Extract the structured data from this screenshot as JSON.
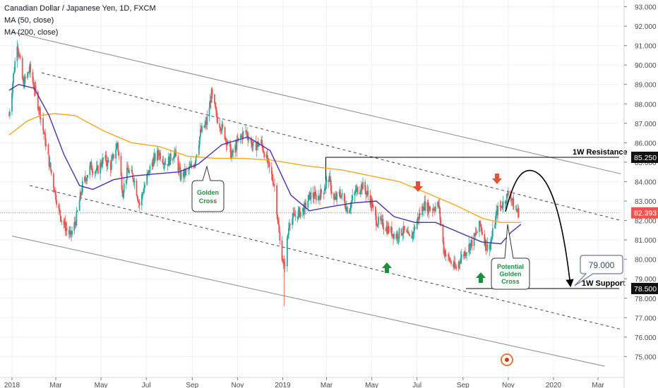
{
  "header": {
    "title": "Canadian Dollar / Japanese Yen, 1D, FXCM",
    "ma50": "MA (50, close)",
    "ma200": "MA (200, close)"
  },
  "chart_data": {
    "type": "candlestick",
    "ylim": [
      74.5,
      93.2
    ],
    "y_ticks": [
      75,
      76,
      77,
      78,
      79,
      80,
      81,
      82,
      83,
      84,
      85,
      86,
      87,
      88,
      89,
      90,
      91,
      92,
      93
    ],
    "x_range": [
      "2018-01-01",
      "2020-04-15"
    ],
    "x_ticks": [
      {
        "date": "2018-01-01",
        "label": "2018"
      },
      {
        "date": "2018-03-01",
        "label": "Mar"
      },
      {
        "date": "2018-05-01",
        "label": "May"
      },
      {
        "date": "2018-07-01",
        "label": "Jul"
      },
      {
        "date": "2018-09-01",
        "label": "Sep"
      },
      {
        "date": "2018-11-01",
        "label": "Nov"
      },
      {
        "date": "2019-01-01",
        "label": "2019"
      },
      {
        "date": "2019-03-01",
        "label": "Mar"
      },
      {
        "date": "2019-05-01",
        "label": "May"
      },
      {
        "date": "2019-07-01",
        "label": "Jul"
      },
      {
        "date": "2019-09-01",
        "label": "Sep"
      },
      {
        "date": "2019-11-01",
        "label": "Nov"
      },
      {
        "date": "2020-01-01",
        "label": "2020"
      },
      {
        "date": "2020-03-01",
        "label": "Mar"
      }
    ],
    "close_path": [
      [
        "2017-12-28",
        87.4
      ],
      [
        "2018-01-08",
        91.2
      ],
      [
        "2018-01-16",
        89.0
      ],
      [
        "2018-01-25",
        89.8
      ],
      [
        "2018-02-08",
        87.5
      ],
      [
        "2018-02-20",
        85.0
      ],
      [
        "2018-03-05",
        82.5
      ],
      [
        "2018-03-12",
        81.8
      ],
      [
        "2018-03-21",
        81.2
      ],
      [
        "2018-03-28",
        82.0
      ],
      [
        "2018-04-06",
        83.8
      ],
      [
        "2018-04-17",
        84.8
      ],
      [
        "2018-04-25",
        84.5
      ],
      [
        "2018-05-05",
        85.2
      ],
      [
        "2018-05-14",
        84.8
      ],
      [
        "2018-05-23",
        86.0
      ],
      [
        "2018-05-30",
        83.5
      ],
      [
        "2018-06-06",
        84.6
      ],
      [
        "2018-06-14",
        84.2
      ],
      [
        "2018-06-22",
        82.8
      ],
      [
        "2018-06-30",
        84.0
      ],
      [
        "2018-07-09",
        85.0
      ],
      [
        "2018-07-18",
        85.5
      ],
      [
        "2018-07-28",
        84.9
      ],
      [
        "2018-08-08",
        85.5
      ],
      [
        "2018-08-16",
        84.3
      ],
      [
        "2018-08-25",
        84.5
      ],
      [
        "2018-09-04",
        85.0
      ],
      [
        "2018-09-12",
        86.5
      ],
      [
        "2018-09-20",
        87.0
      ],
      [
        "2018-09-27",
        88.5
      ],
      [
        "2018-10-04",
        87.3
      ],
      [
        "2018-10-14",
        86.5
      ],
      [
        "2018-10-24",
        85.3
      ],
      [
        "2018-11-03",
        86.2
      ],
      [
        "2018-11-12",
        86.6
      ],
      [
        "2018-11-22",
        85.8
      ],
      [
        "2018-12-03",
        86.0
      ],
      [
        "2018-12-12",
        84.9
      ],
      [
        "2018-12-21",
        83.8
      ],
      [
        "2018-12-28",
        80.9
      ],
      [
        "2019-01-03",
        79.5
      ],
      [
        "2019-01-10",
        82.0
      ],
      [
        "2019-01-20",
        82.3
      ],
      [
        "2019-01-30",
        82.6
      ],
      [
        "2019-02-07",
        83.3
      ],
      [
        "2019-02-17",
        83.2
      ],
      [
        "2019-02-24",
        83.5
      ],
      [
        "2019-03-04",
        84.2
      ],
      [
        "2019-03-11",
        83.0
      ],
      [
        "2019-03-20",
        83.4
      ],
      [
        "2019-03-30",
        82.5
      ],
      [
        "2019-04-09",
        83.5
      ],
      [
        "2019-04-18",
        83.8
      ],
      [
        "2019-04-28",
        83.2
      ],
      [
        "2019-05-07",
        82.0
      ],
      [
        "2019-05-16",
        81.8
      ],
      [
        "2019-05-25",
        81.5
      ],
      [
        "2019-06-03",
        81.2
      ],
      [
        "2019-06-12",
        81.5
      ],
      [
        "2019-06-22",
        81.0
      ],
      [
        "2019-07-01",
        82.0
      ],
      [
        "2019-07-10",
        82.8
      ],
      [
        "2019-07-20",
        82.6
      ],
      [
        "2019-07-30",
        82.8
      ],
      [
        "2019-08-06",
        80.5
      ],
      [
        "2019-08-13",
        80.0
      ],
      [
        "2019-08-22",
        79.5
      ],
      [
        "2019-08-29",
        80.1
      ],
      [
        "2019-09-06",
        80.5
      ],
      [
        "2019-09-15",
        81.0
      ],
      [
        "2019-09-24",
        81.8
      ],
      [
        "2019-10-03",
        80.6
      ],
      [
        "2019-10-08",
        80.8
      ],
      [
        "2019-10-17",
        82.5
      ],
      [
        "2019-10-27",
        83.0
      ],
      [
        "2019-11-03",
        83.5
      ],
      [
        "2019-11-09",
        82.6
      ],
      [
        "2019-11-16",
        82.4
      ]
    ],
    "ma50_path": [
      [
        "2017-12-28",
        88.7
      ],
      [
        "2018-01-10",
        89.0
      ],
      [
        "2018-01-31",
        88.8
      ],
      [
        "2018-02-20",
        87.4
      ],
      [
        "2018-03-12",
        85.4
      ],
      [
        "2018-04-02",
        83.8
      ],
      [
        "2018-04-20",
        83.6
      ],
      [
        "2018-05-18",
        84.1
      ],
      [
        "2018-06-16",
        84.3
      ],
      [
        "2018-07-14",
        84.4
      ],
      [
        "2018-08-14",
        84.5
      ],
      [
        "2018-09-09",
        84.9
      ],
      [
        "2018-10-11",
        85.9
      ],
      [
        "2018-11-15",
        86.3
      ],
      [
        "2018-12-15",
        85.6
      ],
      [
        "2019-01-12",
        83.3
      ],
      [
        "2019-02-06",
        82.5
      ],
      [
        "2019-03-05",
        82.7
      ],
      [
        "2019-04-05",
        82.9
      ],
      [
        "2019-05-07",
        83.0
      ],
      [
        "2019-05-31",
        82.2
      ],
      [
        "2019-06-28",
        81.9
      ],
      [
        "2019-07-26",
        81.9
      ],
      [
        "2019-08-26",
        81.4
      ],
      [
        "2019-09-26",
        80.9
      ],
      [
        "2019-10-22",
        80.8
      ],
      [
        "2019-11-05",
        81.4
      ],
      [
        "2019-11-18",
        81.8
      ]
    ],
    "ma200_path": [
      [
        "2017-12-28",
        86.4
      ],
      [
        "2018-01-21",
        87.1
      ],
      [
        "2018-02-08",
        87.4
      ],
      [
        "2018-02-28",
        87.5
      ],
      [
        "2018-03-27",
        87.4
      ],
      [
        "2018-05-05",
        86.6
      ],
      [
        "2018-06-11",
        86.0
      ],
      [
        "2018-07-19",
        85.8
      ],
      [
        "2018-08-26",
        85.3
      ],
      [
        "2018-10-02",
        85.2
      ],
      [
        "2018-11-09",
        85.2
      ],
      [
        "2018-12-17",
        85.1
      ],
      [
        "2019-02-04",
        84.8
      ],
      [
        "2019-03-22",
        84.6
      ],
      [
        "2019-04-29",
        84.3
      ],
      [
        "2019-06-07",
        84.0
      ],
      [
        "2019-07-15",
        83.4
      ],
      [
        "2019-08-21",
        82.8
      ],
      [
        "2019-09-28",
        82.1
      ],
      [
        "2019-10-21",
        81.9
      ],
      [
        "2019-11-18",
        81.9
      ]
    ],
    "current_price": 82.393,
    "price_labels": [
      "93.000",
      "92.000",
      "91.000",
      "90.000",
      "89.000",
      "88.000",
      "87.000",
      "86.000",
      "85.000",
      "84.000",
      "83.000",
      "82.000",
      "81.000",
      "80.000",
      "79.000",
      "78.000",
      "77.000",
      "76.000",
      "75.000"
    ],
    "badges": {
      "resistance": "85.250",
      "current": "82.393",
      "support": "78.500"
    },
    "levels": {
      "resistance": {
        "label": "1W Resistance",
        "value": 85.25,
        "from": "2019-02-28"
      },
      "support": {
        "label": "1W Support",
        "value": 78.5,
        "from": "2019-09-05"
      }
    },
    "channel": {
      "upper_solid": [
        [
          "2018-01-01",
          91.7
        ],
        [
          "2020-04-01",
          84.4
        ]
      ],
      "upper_dashed": [
        [
          "2018-02-10",
          89.6
        ],
        [
          "2020-04-01",
          82.0
        ]
      ],
      "lower_dashed": [
        [
          "2018-01-25",
          83.8
        ],
        [
          "2020-04-01",
          76.4
        ]
      ],
      "lower_solid": [
        [
          "2018-01-01",
          81.2
        ],
        [
          "2020-03-10",
          74.5
        ]
      ]
    },
    "annotations": {
      "golden_cross": "Golden\nCross",
      "potential_golden_cross": "Potential\nGolden\nCross",
      "target": "79.000"
    }
  }
}
